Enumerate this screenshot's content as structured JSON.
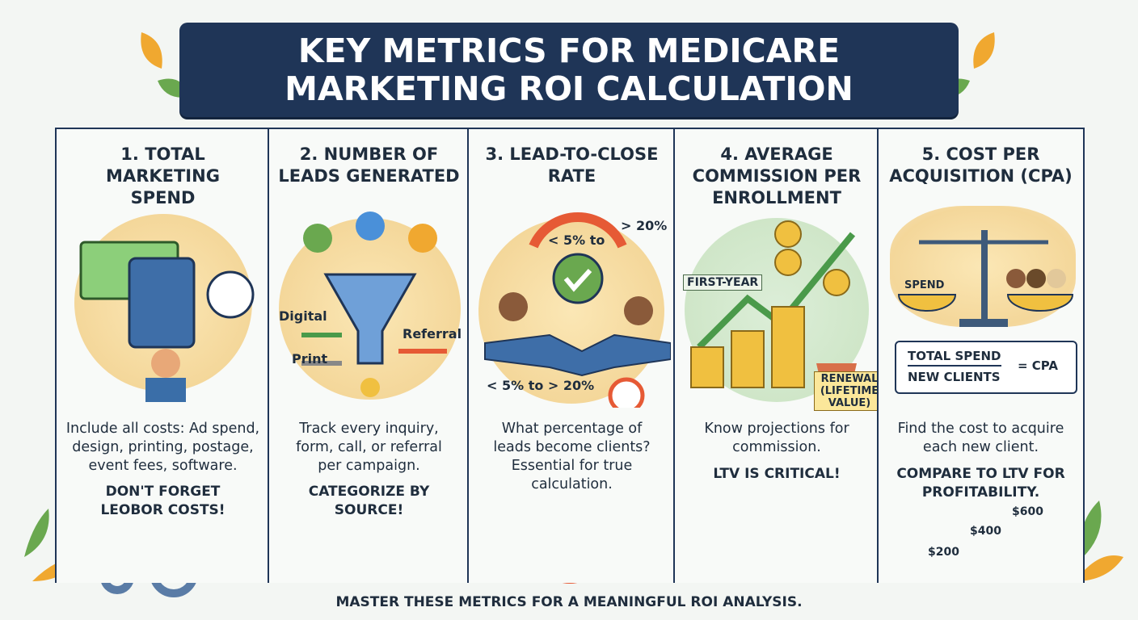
{
  "header": {
    "title": "KEY METRICS FOR MEDICARE MARKETING ROI CALCULATION"
  },
  "columns": [
    {
      "title": "1. TOTAL MARKETING SPEND",
      "labels": [],
      "description": "Include all costs: Ad spend, design, printing, postage, event fees, software.",
      "emphasis": "DON'T FORGET LEOBOR COSTS!"
    },
    {
      "title": "2. NUMBER OF LEADS GENERATED",
      "labels": [
        "Digital",
        "Print",
        "Referral"
      ],
      "description": "Track every inquiry, form, call, or referral per campaign.",
      "emphasis": "CATEGORIZE BY SOURCE!"
    },
    {
      "title": "3. LEAD-TO-CLOSE RATE",
      "labels": [
        "< 5% to",
        "> 20%",
        "< 5% to > 20%"
      ],
      "description": "What percentage of leads become clients? Essential for true calculation."
    },
    {
      "title": "4. AVERAGE COMMISSION PER ENROLLMENT",
      "labels": [
        "FIRST-YEAR",
        "RENEWAL (LIFETIME VALUE)"
      ],
      "description": "Know projections for commission.",
      "emphasis": "LTV IS CRITICAL!"
    },
    {
      "title": "5. COST PER ACQUISITION (CPA)",
      "labels": [
        "SPEND",
        "TOTAL SPEND",
        "NEW CLIENTS",
        "= CPA"
      ],
      "description": "Find the cost to acquire each new client.",
      "emphasis": "COMPARE TO LTV FOR PROFITABILITY."
    }
  ],
  "bars": {
    "labels": [
      "$200",
      "$400",
      "$600"
    ]
  },
  "footer": {
    "text": "MASTER THESE METRICS FOR A MEANINGFUL ROI ANALYSIS."
  }
}
